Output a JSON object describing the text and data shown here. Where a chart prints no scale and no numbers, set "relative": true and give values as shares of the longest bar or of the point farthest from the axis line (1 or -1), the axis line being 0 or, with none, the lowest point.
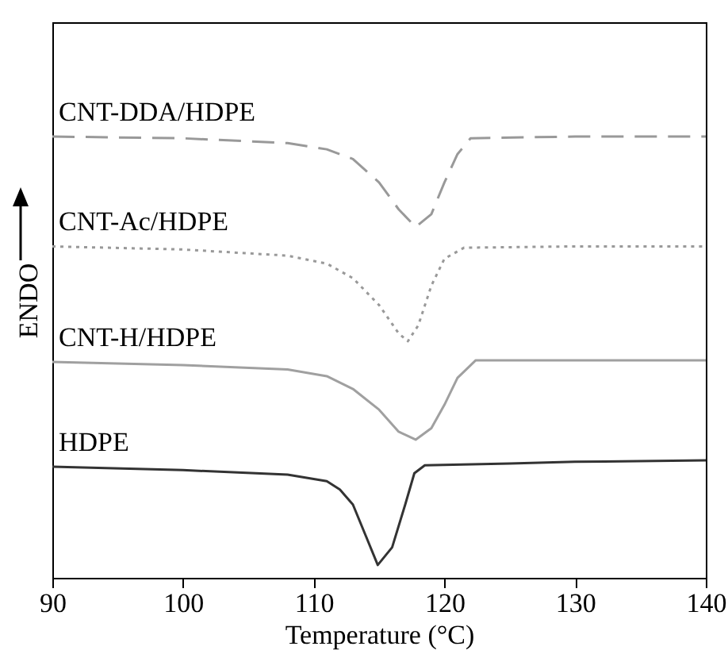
{
  "chart_data": {
    "type": "line",
    "xlabel": "Temperature (°C)",
    "ylabel": "ENDO",
    "relative": true,
    "xlim": [
      90,
      140
    ],
    "xticks": [
      90,
      100,
      110,
      120,
      130,
      140
    ],
    "grid": false,
    "marker": "none",
    "series": [
      {
        "name": "CNT-DDA/HDPE",
        "color": "#999999",
        "line_style": "dashed",
        "x": [
          90,
          100,
          108,
          111,
          113,
          115,
          116.5,
          117.8,
          119,
          120,
          121,
          122,
          130,
          140
        ],
        "values": [
          1.0,
          0.996,
          0.985,
          0.971,
          0.949,
          0.896,
          0.835,
          0.795,
          0.824,
          0.896,
          0.96,
          0.996,
          1.0,
          1.0
        ]
      },
      {
        "name": "CNT-Ac/HDPE",
        "color": "#999999",
        "line_style": "dotted",
        "x": [
          90,
          100,
          108,
          111,
          113,
          115,
          116.5,
          117.2,
          118,
          119,
          120,
          121.5,
          130,
          140
        ],
        "values": [
          0.751,
          0.744,
          0.73,
          0.712,
          0.679,
          0.618,
          0.554,
          0.536,
          0.572,
          0.662,
          0.723,
          0.748,
          0.751,
          0.751
        ]
      },
      {
        "name": "CNT-H/HDPE",
        "color": "#a0a0a0",
        "line_style": "solid",
        "x": [
          90,
          100,
          108,
          111,
          113,
          115,
          116.5,
          117.8,
          119,
          120,
          121,
          122.4,
          130,
          140
        ],
        "values": [
          0.489,
          0.482,
          0.472,
          0.457,
          0.428,
          0.381,
          0.331,
          0.313,
          0.339,
          0.392,
          0.453,
          0.493,
          0.493,
          0.493
        ]
      },
      {
        "name": "HDPE",
        "color": "#333333",
        "line_style": "solid",
        "x": [
          90,
          100,
          108,
          111,
          112,
          113,
          114,
          114.9,
          116,
          117,
          117.7,
          118.5,
          125,
          130,
          140
        ],
        "values": [
          0.252,
          0.244,
          0.234,
          0.219,
          0.2,
          0.166,
          0.094,
          0.029,
          0.069,
          0.166,
          0.237,
          0.255,
          0.259,
          0.263,
          0.266
        ]
      }
    ]
  }
}
